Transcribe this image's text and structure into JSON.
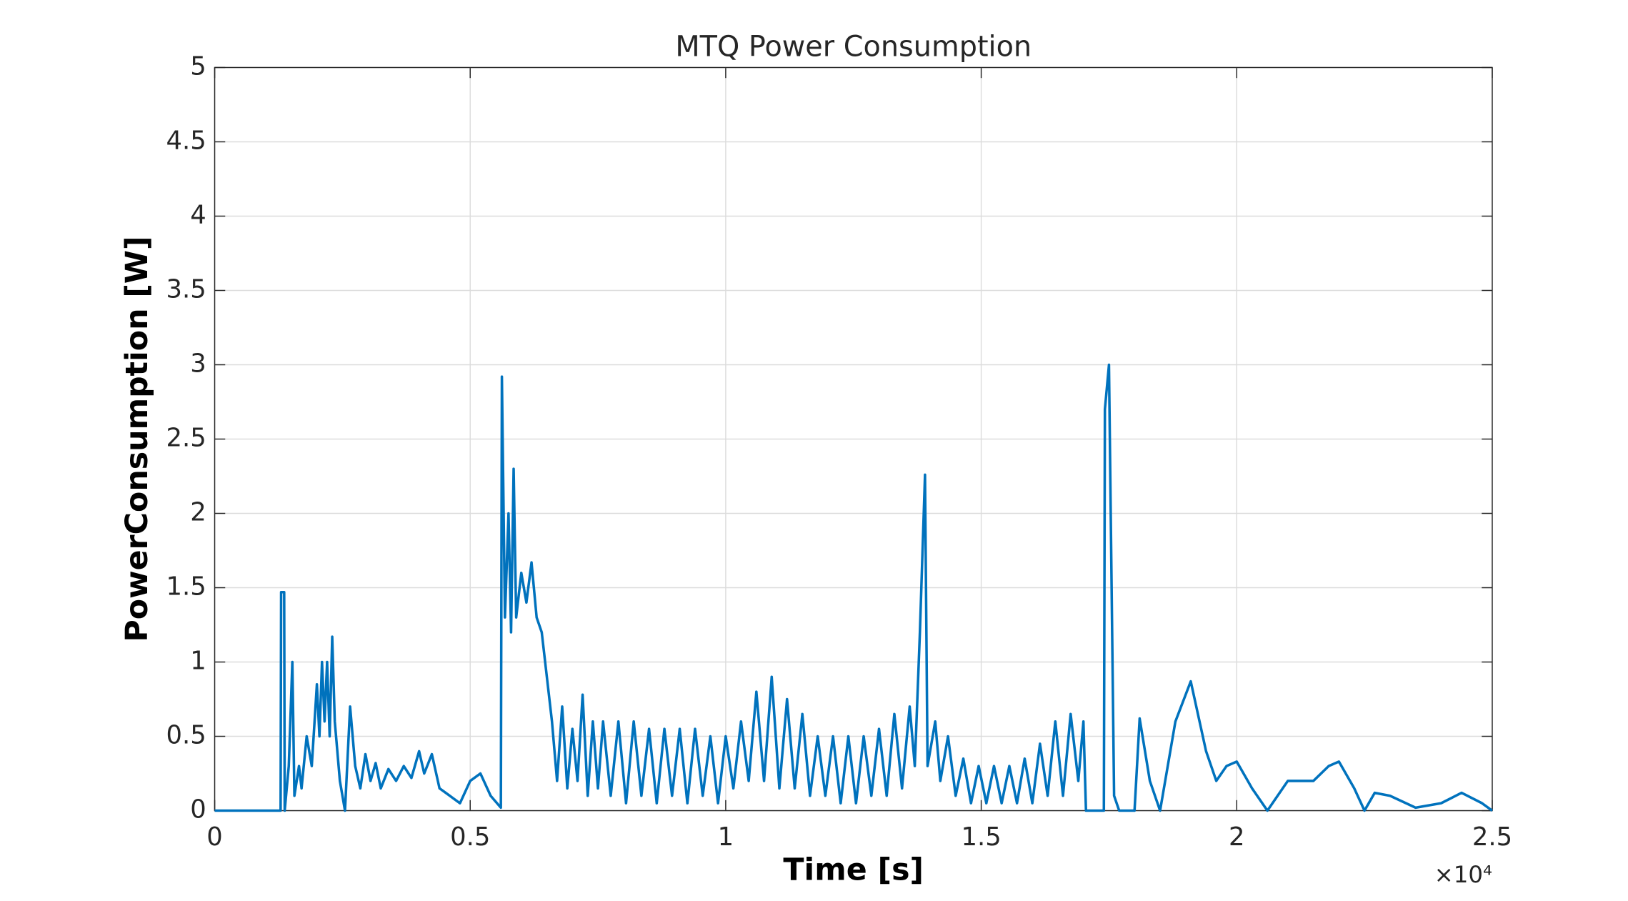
{
  "chart_data": {
    "type": "line",
    "title": "MTQ Power Consumption",
    "xlabel": "Time [s]",
    "ylabel": "PowerConsumption [W]",
    "x_multiplier": "×10⁴",
    "xlim": [
      0,
      25000
    ],
    "ylim": [
      0,
      5
    ],
    "grid": true,
    "xticks": [
      0,
      {
        "value": 5000,
        "label": "0.5"
      },
      {
        "value": 10000,
        "label": "1"
      },
      {
        "value": 15000,
        "label": "1.5"
      },
      {
        "value": 20000,
        "label": "2"
      },
      {
        "value": 25000,
        "label": "2.5"
      }
    ],
    "yticks": [
      0,
      0.5,
      1,
      1.5,
      2,
      2.5,
      3,
      3.5,
      4,
      4.5,
      5
    ],
    "series": [
      {
        "name": "PowerConsumption",
        "color": "#0072bd",
        "x": [
          0,
          1290,
          1300,
          1360,
          1370,
          1450,
          1520,
          1560,
          1650,
          1700,
          1800,
          1900,
          2000,
          2050,
          2100,
          2150,
          2200,
          2250,
          2300,
          2350,
          2450,
          2550,
          2650,
          2750,
          2850,
          2950,
          3050,
          3150,
          3250,
          3400,
          3550,
          3700,
          3850,
          4000,
          4100,
          4250,
          4400,
          4600,
          4800,
          5000,
          5200,
          5400,
          5600,
          5620,
          5680,
          5750,
          5800,
          5850,
          5900,
          6000,
          6100,
          6200,
          6300,
          6400,
          6500,
          6600,
          6700,
          6800,
          6900,
          7000,
          7100,
          7200,
          7300,
          7400,
          7500,
          7600,
          7750,
          7900,
          8050,
          8200,
          8350,
          8500,
          8650,
          8800,
          8950,
          9100,
          9250,
          9400,
          9550,
          9700,
          9850,
          10000,
          10150,
          10300,
          10450,
          10600,
          10750,
          10900,
          11050,
          11200,
          11350,
          11500,
          11650,
          11800,
          11950,
          12100,
          12250,
          12400,
          12550,
          12700,
          12850,
          13000,
          13150,
          13300,
          13450,
          13600,
          13700,
          13800,
          13900,
          13950,
          14100,
          14200,
          14350,
          14500,
          14650,
          14800,
          14950,
          15100,
          15250,
          15400,
          15550,
          15700,
          15850,
          16000,
          16150,
          16300,
          16450,
          16600,
          16750,
          16900,
          17000,
          17050,
          17400,
          17420,
          17500,
          17600,
          17700,
          18000,
          18100,
          18300,
          18500,
          18800,
          19100,
          19400,
          19600,
          19800,
          20000,
          20300,
          20600,
          21000,
          21500,
          21800,
          22000,
          22300,
          22500,
          22700,
          23000,
          23500,
          24000,
          24400,
          24800,
          25000
        ],
        "values": [
          0,
          0,
          1.47,
          1.47,
          0,
          0.3,
          1.0,
          0.1,
          0.3,
          0.15,
          0.5,
          0.3,
          0.85,
          0.5,
          1.0,
          0.6,
          1.0,
          0.5,
          1.17,
          0.6,
          0.2,
          0.0,
          0.7,
          0.3,
          0.15,
          0.38,
          0.2,
          0.32,
          0.15,
          0.28,
          0.2,
          0.3,
          0.22,
          0.4,
          0.25,
          0.38,
          0.15,
          0.1,
          0.05,
          0.2,
          0.25,
          0.1,
          0.02,
          2.92,
          1.3,
          2.0,
          1.2,
          2.3,
          1.3,
          1.6,
          1.4,
          1.67,
          1.3,
          1.2,
          0.9,
          0.6,
          0.2,
          0.7,
          0.15,
          0.55,
          0.2,
          0.78,
          0.1,
          0.6,
          0.15,
          0.6,
          0.1,
          0.6,
          0.05,
          0.6,
          0.1,
          0.55,
          0.05,
          0.55,
          0.1,
          0.55,
          0.05,
          0.55,
          0.1,
          0.5,
          0.05,
          0.5,
          0.15,
          0.6,
          0.2,
          0.8,
          0.2,
          0.9,
          0.15,
          0.75,
          0.15,
          0.65,
          0.1,
          0.5,
          0.1,
          0.5,
          0.05,
          0.5,
          0.05,
          0.5,
          0.1,
          0.55,
          0.1,
          0.65,
          0.15,
          0.7,
          0.3,
          1.2,
          2.26,
          0.3,
          0.6,
          0.2,
          0.5,
          0.1,
          0.35,
          0.05,
          0.3,
          0.05,
          0.3,
          0.05,
          0.3,
          0.05,
          0.35,
          0.05,
          0.45,
          0.1,
          0.6,
          0.1,
          0.65,
          0.2,
          0.6,
          0.0,
          0.0,
          2.7,
          3.0,
          0.1,
          0.0,
          0.0,
          0.62,
          0.2,
          0.0,
          0.6,
          0.87,
          0.4,
          0.2,
          0.3,
          0.33,
          0.15,
          0.0,
          0.2,
          0.2,
          0.3,
          0.33,
          0.15,
          0.0,
          0.12,
          0.1,
          0.02,
          0.05,
          0.12,
          0.05,
          0.0
        ]
      }
    ]
  }
}
